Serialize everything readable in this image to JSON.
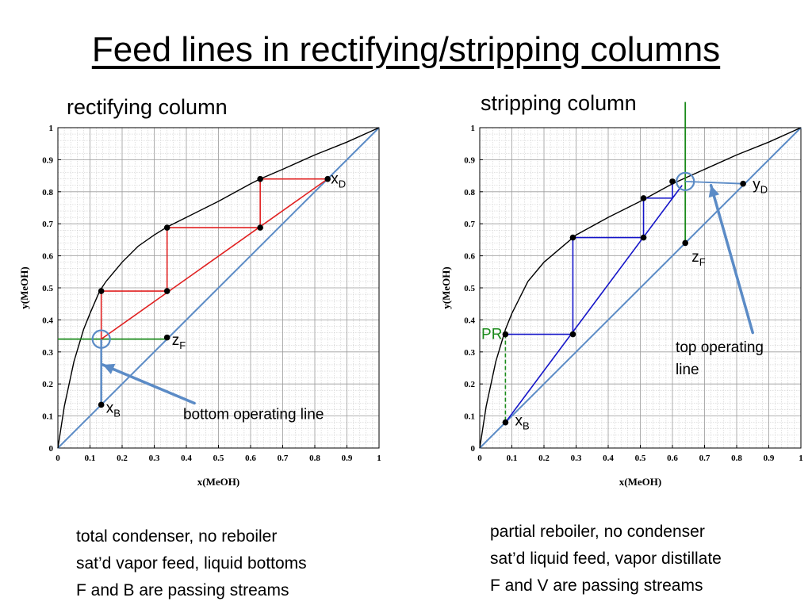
{
  "slide": {
    "title": "Feed lines in rectifying/stripping columns",
    "left_notes": [
      "total condenser, no reboiler",
      "sat’d vapor feed, liquid bottoms",
      "F and B are passing streams"
    ],
    "right_notes": [
      "partial reboiler, no condenser",
      "sat’d liquid feed, vapor distillate",
      "F and V are passing streams"
    ]
  },
  "colors": {
    "equilibrium": "#000000",
    "diagonal": "#5b8bc6",
    "stages_left": "#e02020",
    "stages_right": "#1414c8",
    "feed": "#1a8a1a",
    "callout": "#5b8bc6"
  },
  "chart_data": [
    {
      "type": "line",
      "title": "rectifying column",
      "xlabel": "x(MeOH)",
      "ylabel": "y(MeOH)",
      "xlim": [
        0,
        1
      ],
      "ylim": [
        0,
        1
      ],
      "grid": true,
      "ticks": [
        "0",
        "0.1",
        "0.2",
        "0.3",
        "0.4",
        "0.5",
        "0.6",
        "0.7",
        "0.8",
        "0.9",
        "1"
      ],
      "equilibrium": [
        [
          0,
          0
        ],
        [
          0.02,
          0.13
        ],
        [
          0.05,
          0.27
        ],
        [
          0.08,
          0.37
        ],
        [
          0.1,
          0.42
        ],
        [
          0.13,
          0.49
        ],
        [
          0.15,
          0.52
        ],
        [
          0.2,
          0.58
        ],
        [
          0.25,
          0.63
        ],
        [
          0.3,
          0.665
        ],
        [
          0.34,
          0.69
        ],
        [
          0.4,
          0.72
        ],
        [
          0.5,
          0.77
        ],
        [
          0.6,
          0.825
        ],
        [
          0.63,
          0.84
        ],
        [
          0.7,
          0.87
        ],
        [
          0.8,
          0.915
        ],
        [
          0.9,
          0.955
        ],
        [
          1,
          1
        ]
      ],
      "operating_line": [
        [
          0.135,
          0.34
        ],
        [
          0.84,
          0.84
        ]
      ],
      "stages": [
        [
          0.84,
          0.84
        ],
        [
          0.63,
          0.84
        ],
        [
          0.63,
          0.688
        ],
        [
          0.34,
          0.688
        ],
        [
          0.34,
          0.49
        ],
        [
          0.135,
          0.49
        ],
        [
          0.135,
          0.34
        ]
      ],
      "points": [
        {
          "x": 0.84,
          "y": 0.84
        },
        {
          "x": 0.63,
          "y": 0.84
        },
        {
          "x": 0.63,
          "y": 0.688
        },
        {
          "x": 0.34,
          "y": 0.688
        },
        {
          "x": 0.34,
          "y": 0.49
        },
        {
          "x": 0.135,
          "y": 0.49
        },
        {
          "x": 0.34,
          "y": 0.345
        },
        {
          "x": 0.135,
          "y": 0.135
        }
      ],
      "feed_line": [
        [
          0,
          0.34
        ],
        [
          0.34,
          0.34
        ]
      ],
      "bottom_line": [
        [
          0.135,
          0.34
        ],
        [
          0.135,
          0.135
        ]
      ],
      "circle": {
        "x": 0.135,
        "y": 0.34
      },
      "labels": [
        {
          "main": "x",
          "sub": "D",
          "x": 0.85,
          "y": 0.825
        },
        {
          "main": "z",
          "sub": "F",
          "x": 0.355,
          "y": 0.322
        },
        {
          "main": "x",
          "sub": "B",
          "x": 0.15,
          "y": 0.11
        }
      ],
      "callout": {
        "text": "bottom operating line",
        "from": [
          0.425,
          0.14
        ],
        "to": [
          0.14,
          0.26
        ],
        "label_at": [
          0.39,
          0.09
        ]
      }
    },
    {
      "type": "line",
      "title": "stripping column",
      "xlabel": "x(MeOH)",
      "ylabel": "y(MeOH)",
      "xlim": [
        0,
        1
      ],
      "ylim": [
        0,
        1
      ],
      "grid": true,
      "ticks": [
        "0",
        "0.1",
        "0.2",
        "0.3",
        "0.4",
        "0.5",
        "0.6",
        "0.7",
        "0.8",
        "0.9",
        "1"
      ],
      "equilibrium": [
        [
          0,
          0
        ],
        [
          0.02,
          0.13
        ],
        [
          0.05,
          0.27
        ],
        [
          0.08,
          0.37
        ],
        [
          0.1,
          0.42
        ],
        [
          0.15,
          0.52
        ],
        [
          0.2,
          0.58
        ],
        [
          0.3,
          0.665
        ],
        [
          0.4,
          0.72
        ],
        [
          0.5,
          0.77
        ],
        [
          0.6,
          0.825
        ],
        [
          0.7,
          0.87
        ],
        [
          0.8,
          0.915
        ],
        [
          0.9,
          0.955
        ],
        [
          1,
          1
        ]
      ],
      "operating_line": [
        [
          0.08,
          0.08
        ],
        [
          0.63,
          0.82
        ]
      ],
      "stages": [
        [
          0.08,
          0.355
        ],
        [
          0.29,
          0.355
        ],
        [
          0.29,
          0.657
        ],
        [
          0.51,
          0.657
        ],
        [
          0.51,
          0.78
        ],
        [
          0.6,
          0.78
        ],
        [
          0.6,
          0.832
        ]
      ],
      "points": [
        {
          "x": 0.08,
          "y": 0.355
        },
        {
          "x": 0.29,
          "y": 0.355
        },
        {
          "x": 0.29,
          "y": 0.657
        },
        {
          "x": 0.51,
          "y": 0.657
        },
        {
          "x": 0.51,
          "y": 0.78
        },
        {
          "x": 0.6,
          "y": 0.832
        },
        {
          "x": 0.08,
          "y": 0.08
        },
        {
          "x": 0.64,
          "y": 0.64
        },
        {
          "x": 0.82,
          "y": 0.825
        }
      ],
      "pr_line": [
        [
          0.08,
          0.355
        ],
        [
          0.08,
          0.08
        ]
      ],
      "top_line": [
        [
          0.64,
          0.832
        ],
        [
          0.82,
          0.825
        ]
      ],
      "feed_line": [
        [
          0.64,
          1.08
        ],
        [
          0.64,
          0.64
        ]
      ],
      "circle": {
        "x": 0.64,
        "y": 0.832
      },
      "labels": [
        {
          "main": "y",
          "sub": "D",
          "x": 0.85,
          "y": 0.808
        },
        {
          "main": "z",
          "sub": "F",
          "x": 0.66,
          "y": 0.582
        },
        {
          "main": "x",
          "sub": "B",
          "x": 0.11,
          "y": 0.07
        }
      ],
      "pr_label": {
        "text": "PR",
        "x": 0.005,
        "y": 0.34
      },
      "callout": {
        "text": "top operating line",
        "lines": [
          "top operating",
          "line"
        ],
        "from": [
          0.85,
          0.36
        ],
        "to": [
          0.72,
          0.82
        ],
        "label_at": [
          0.61,
          0.3
        ]
      }
    }
  ]
}
